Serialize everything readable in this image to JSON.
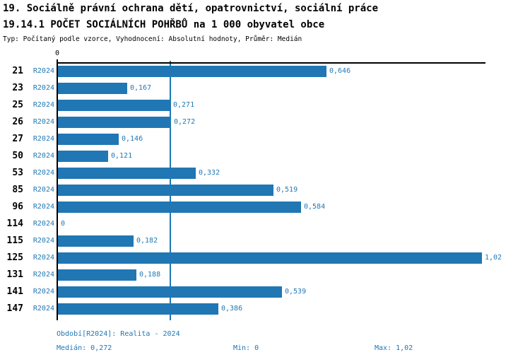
{
  "header": {
    "title_line1": "19. Sociálně právní ochrana dětí, opatrovnictví, sociální práce",
    "title_line2": "19.14.1 POČET SOCIÁLNÍCH POHŘBŮ na 1 000 obyvatel obce",
    "subtitle": "Typ: Počítaný podle vzorce, Vyhodnocení: Absolutní hodnoty, Průměr: Medián"
  },
  "chart_data": {
    "type": "bar",
    "orientation": "horizontal",
    "title": "19.14.1 POČET SOCIÁLNÍCH POHŘBŮ na 1 000 obyvatel obce",
    "categories": [
      "21",
      "23",
      "25",
      "26",
      "27",
      "50",
      "53",
      "85",
      "96",
      "114",
      "115",
      "125",
      "131",
      "141",
      "147"
    ],
    "series": [
      {
        "name": "R2024",
        "values": [
          0.646,
          0.167,
          0.271,
          0.272,
          0.146,
          0.121,
          0.332,
          0.519,
          0.584,
          0,
          0.182,
          1.02,
          0.188,
          0.539,
          0.386
        ]
      }
    ],
    "value_labels": [
      "0,646",
      "0,167",
      "0,271",
      "0,272",
      "0,146",
      "0,121",
      "0,332",
      "0,519",
      "0,584",
      "0",
      "0,182",
      "1,02",
      "0,188",
      "0,539",
      "0,386"
    ],
    "x_tick_labels": [
      "0"
    ],
    "xlabel": "",
    "ylabel": "",
    "xlim": [
      0,
      1.03
    ],
    "grid": false,
    "legend": "none",
    "median_value": 0.272,
    "min_value": 0,
    "max_value": 1.02,
    "bar_color": "#2077b4",
    "median_line_color": "#1f77b4",
    "label_color": "#1f77b4"
  },
  "footer": {
    "period": "Období[R2024]: Realita - 2024",
    "median": "Medián: 0,272",
    "min": "Min: 0",
    "max": "Max: 1,02"
  },
  "colors": {
    "bar": "#2077b4",
    "text_blue": "#1f77b4",
    "title_text": "#000000",
    "axis": "#000000",
    "background": "#ffffff"
  }
}
